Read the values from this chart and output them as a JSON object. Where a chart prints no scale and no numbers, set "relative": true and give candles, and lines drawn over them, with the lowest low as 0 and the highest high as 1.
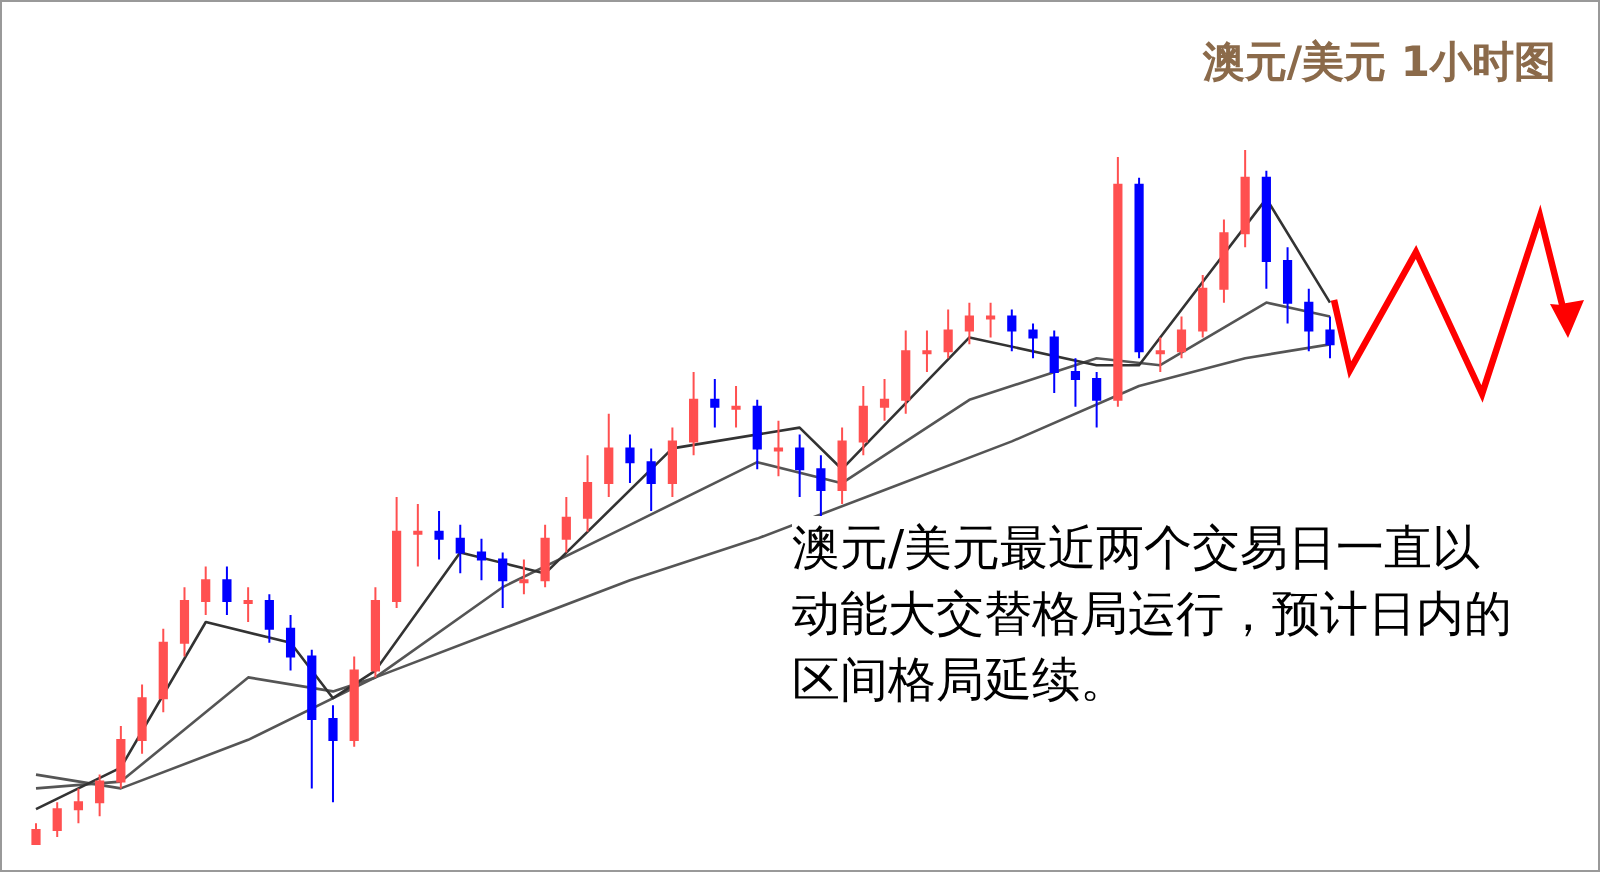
{
  "chart_data": {
    "type": "candlestick",
    "relative": true,
    "title": "澳元/美元 1小时图",
    "annotations": [
      "澳元/美元最近两个交易日一直以动能大交替格局运行，预计日内的区间格局延续。"
    ],
    "categories": [
      null,
      null,
      null,
      null,
      null,
      null,
      null,
      null,
      null,
      null,
      null,
      null,
      null,
      null,
      null,
      null,
      null,
      null,
      null,
      null,
      null,
      null,
      null,
      null,
      null,
      null,
      null,
      null,
      null,
      null,
      null,
      null,
      null,
      null,
      null,
      null,
      null,
      null,
      null,
      null,
      null,
      null,
      null,
      null,
      null,
      null,
      null,
      null,
      null,
      null,
      null,
      null,
      null,
      null,
      null,
      null,
      null,
      null,
      null,
      null,
      null,
      null
    ],
    "ohlc": [
      [
        0.0,
        0.03,
        0.0,
        0.02
      ],
      [
        0.02,
        0.06,
        0.01,
        0.05
      ],
      [
        0.05,
        0.08,
        0.03,
        0.06
      ],
      [
        0.06,
        0.1,
        0.04,
        0.09
      ],
      [
        0.09,
        0.17,
        0.08,
        0.15
      ],
      [
        0.15,
        0.23,
        0.13,
        0.21
      ],
      [
        0.21,
        0.31,
        0.19,
        0.29
      ],
      [
        0.29,
        0.37,
        0.27,
        0.35
      ],
      [
        0.35,
        0.4,
        0.33,
        0.38
      ],
      [
        0.38,
        0.4,
        0.33,
        0.35
      ],
      [
        0.35,
        0.37,
        0.32,
        0.35
      ],
      [
        0.35,
        0.36,
        0.29,
        0.31
      ],
      [
        0.31,
        0.33,
        0.25,
        0.27
      ],
      [
        0.27,
        0.28,
        0.08,
        0.18
      ],
      [
        0.18,
        0.2,
        0.06,
        0.15
      ],
      [
        0.15,
        0.27,
        0.14,
        0.25
      ],
      [
        0.25,
        0.37,
        0.24,
        0.35
      ],
      [
        0.35,
        0.5,
        0.34,
        0.45
      ],
      [
        0.45,
        0.49,
        0.4,
        0.45
      ],
      [
        0.45,
        0.48,
        0.41,
        0.44
      ],
      [
        0.44,
        0.46,
        0.39,
        0.42
      ],
      [
        0.42,
        0.44,
        0.38,
        0.41
      ],
      [
        0.41,
        0.42,
        0.34,
        0.38
      ],
      [
        0.38,
        0.41,
        0.36,
        0.38
      ],
      [
        0.38,
        0.46,
        0.37,
        0.44
      ],
      [
        0.44,
        0.5,
        0.42,
        0.47
      ],
      [
        0.47,
        0.56,
        0.45,
        0.52
      ],
      [
        0.52,
        0.62,
        0.5,
        0.57
      ],
      [
        0.57,
        0.59,
        0.52,
        0.55
      ],
      [
        0.55,
        0.57,
        0.48,
        0.52
      ],
      [
        0.52,
        0.6,
        0.5,
        0.58
      ],
      [
        0.58,
        0.68,
        0.56,
        0.64
      ],
      [
        0.64,
        0.67,
        0.6,
        0.63
      ],
      [
        0.63,
        0.66,
        0.6,
        0.63
      ],
      [
        0.63,
        0.64,
        0.54,
        0.57
      ],
      [
        0.57,
        0.61,
        0.53,
        0.57
      ],
      [
        0.57,
        0.59,
        0.5,
        0.54
      ],
      [
        0.54,
        0.56,
        0.47,
        0.51
      ],
      [
        0.51,
        0.6,
        0.49,
        0.58
      ],
      [
        0.58,
        0.66,
        0.56,
        0.63
      ],
      [
        0.63,
        0.67,
        0.61,
        0.64
      ],
      [
        0.64,
        0.74,
        0.62,
        0.71
      ],
      [
        0.71,
        0.74,
        0.68,
        0.71
      ],
      [
        0.71,
        0.77,
        0.7,
        0.74
      ],
      [
        0.74,
        0.78,
        0.72,
        0.76
      ],
      [
        0.76,
        0.78,
        0.73,
        0.76
      ],
      [
        0.76,
        0.77,
        0.71,
        0.74
      ],
      [
        0.74,
        0.75,
        0.7,
        0.73
      ],
      [
        0.73,
        0.74,
        0.65,
        0.68
      ],
      [
        0.68,
        0.7,
        0.63,
        0.67
      ],
      [
        0.67,
        0.68,
        0.6,
        0.64
      ],
      [
        0.64,
        0.99,
        0.63,
        0.95
      ],
      [
        0.95,
        0.96,
        0.7,
        0.71
      ],
      [
        0.71,
        0.73,
        0.68,
        0.71
      ],
      [
        0.71,
        0.76,
        0.7,
        0.74
      ],
      [
        0.74,
        0.82,
        0.73,
        0.8
      ],
      [
        0.8,
        0.9,
        0.78,
        0.88
      ],
      [
        0.88,
        1.0,
        0.86,
        0.96
      ],
      [
        0.96,
        0.97,
        0.8,
        0.84
      ],
      [
        0.84,
        0.86,
        0.75,
        0.78
      ],
      [
        0.78,
        0.8,
        0.71,
        0.74
      ],
      [
        0.74,
        0.76,
        0.7,
        0.72
      ]
    ],
    "colors": [
      "#ff5050",
      "#ff5050",
      "#ff5050",
      "#ff5050",
      "#ff5050",
      "#ff5050",
      "#ff5050",
      "#ff5050",
      "#ff5050",
      "#0000ff",
      "#ff5050",
      "#0000ff",
      "#0000ff",
      "#0000ff",
      "#0000ff",
      "#ff5050",
      "#ff5050",
      "#ff5050",
      "#ff5050",
      "#0000ff",
      "#0000ff",
      "#0000ff",
      "#0000ff",
      "#ff5050",
      "#ff5050",
      "#ff5050",
      "#ff5050",
      "#ff5050",
      "#0000ff",
      "#0000ff",
      "#ff5050",
      "#ff5050",
      "#0000ff",
      "#ff5050",
      "#0000ff",
      "#ff5050",
      "#0000ff",
      "#0000ff",
      "#ff5050",
      "#ff5050",
      "#ff5050",
      "#ff5050",
      "#ff5050",
      "#ff5050",
      "#ff5050",
      "#ff5050",
      "#0000ff",
      "#0000ff",
      "#0000ff",
      "#0000ff",
      "#0000ff",
      "#ff5050",
      "#0000ff",
      "#ff5050",
      "#ff5050",
      "#ff5050",
      "#ff5050",
      "#ff5050",
      "#0000ff",
      "#0000ff",
      "#0000ff",
      "#0000ff"
    ],
    "series": [
      {
        "type": "line",
        "color": "#555555",
        "values": [
          0.1,
          null,
          null,
          null,
          0.08,
          null,
          null,
          null,
          null,
          null,
          0.15,
          null,
          null,
          null,
          null,
          null,
          0.24,
          null,
          null,
          null,
          null,
          null,
          0.31,
          null,
          null,
          null,
          null,
          null,
          0.38,
          null,
          null,
          null,
          null,
          null,
          0.44,
          null,
          null,
          null,
          null,
          null,
          0.51,
          null,
          null,
          null,
          null,
          null,
          0.58,
          null,
          null,
          null,
          null,
          null,
          0.66,
          null,
          null,
          null,
          null,
          0.7,
          null,
          null,
          null,
          0.72
        ]
      },
      {
        "type": "line",
        "color": "#555555",
        "values": [
          0.08,
          null,
          null,
          null,
          0.09,
          null,
          null,
          null,
          null,
          null,
          0.24,
          null,
          null,
          null,
          0.22,
          null,
          0.24,
          null,
          null,
          null,
          null,
          null,
          0.37,
          null,
          null,
          null,
          null,
          null,
          0.46,
          null,
          null,
          null,
          null,
          null,
          0.55,
          null,
          null,
          null,
          0.52,
          null,
          null,
          null,
          null,
          null,
          0.64,
          null,
          null,
          null,
          null,
          null,
          0.7,
          null,
          null,
          0.69,
          null,
          null,
          null,
          null,
          0.78,
          null,
          null,
          0.76
        ]
      },
      {
        "type": "line",
        "color": "#333333",
        "values": [
          0.05,
          null,
          null,
          null,
          0.11,
          null,
          null,
          null,
          0.32,
          null,
          null,
          null,
          0.29,
          null,
          0.21,
          null,
          0.25,
          null,
          null,
          null,
          0.42,
          null,
          null,
          null,
          0.39,
          null,
          null,
          null,
          null,
          null,
          0.57,
          null,
          null,
          null,
          null,
          null,
          0.6,
          null,
          0.54,
          null,
          null,
          null,
          null,
          null,
          0.73,
          null,
          null,
          null,
          null,
          null,
          0.69,
          null,
          0.69,
          null,
          null,
          null,
          null,
          null,
          0.93,
          null,
          null,
          0.78
        ]
      }
    ]
  }
}
